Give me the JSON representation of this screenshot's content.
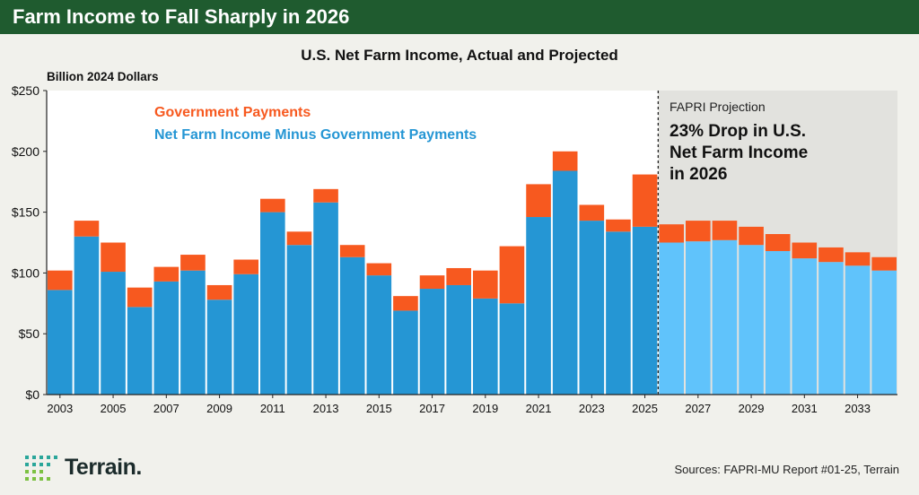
{
  "banner": {
    "title": "Farm Income to Fall Sharply in 2026"
  },
  "footer": {
    "source": "Sources: FAPRI-MU Report #01-25, Terrain",
    "logo_text": "Terrain."
  },
  "colors": {
    "gov": "#f7591f",
    "actual": "#2596d4",
    "projected": "#60c3fb",
    "projection_bg": "#e2e2de",
    "banner": "#1f5b2f"
  },
  "chart_data": {
    "type": "bar",
    "stacked": true,
    "title": "U.S. Net Farm Income, Actual and Projected",
    "ylabel": "Billion 2024 Dollars",
    "ylim": [
      0,
      250
    ],
    "yticks": [
      0,
      50,
      100,
      150,
      200,
      250
    ],
    "ytick_labels": [
      "$0",
      "$50",
      "$100",
      "$150",
      "$200",
      "$250"
    ],
    "xtick_labels": [
      "2003",
      "2005",
      "2007",
      "2009",
      "2011",
      "2013",
      "2015",
      "2017",
      "2019",
      "2021",
      "2023",
      "2025",
      "2027",
      "2029",
      "2031",
      "2033"
    ],
    "categories": [
      "2003",
      "2004",
      "2005",
      "2006",
      "2007",
      "2008",
      "2009",
      "2010",
      "2011",
      "2012",
      "2013",
      "2014",
      "2015",
      "2016",
      "2017",
      "2018",
      "2019",
      "2020",
      "2021",
      "2022",
      "2023",
      "2024",
      "2025",
      "2026",
      "2027",
      "2028",
      "2029",
      "2030",
      "2031",
      "2032",
      "2033",
      "2034"
    ],
    "projection_start": "2026",
    "series": [
      {
        "name": "Net Farm Income Minus Government Payments",
        "values": [
          86,
          130,
          101,
          72,
          93,
          102,
          78,
          99,
          150,
          123,
          158,
          113,
          98,
          69,
          87,
          90,
          79,
          75,
          146,
          184,
          143,
          134,
          138,
          125,
          126,
          127,
          123,
          118,
          112,
          109,
          106,
          102
        ]
      },
      {
        "name": "Government Payments",
        "values": [
          16,
          13,
          24,
          16,
          12,
          13,
          12,
          12,
          11,
          11,
          11,
          10,
          10,
          12,
          11,
          14,
          23,
          47,
          27,
          16,
          13,
          10,
          43,
          15,
          17,
          16,
          15,
          14,
          13,
          12,
          11,
          11
        ]
      }
    ],
    "legend": [
      "Government Payments",
      "Net Farm Income Minus Government Payments"
    ],
    "annotation": {
      "label": "FAPRI Projection",
      "text": [
        "23% Drop in U.S.",
        "Net Farm Income",
        "in 2026"
      ]
    }
  }
}
